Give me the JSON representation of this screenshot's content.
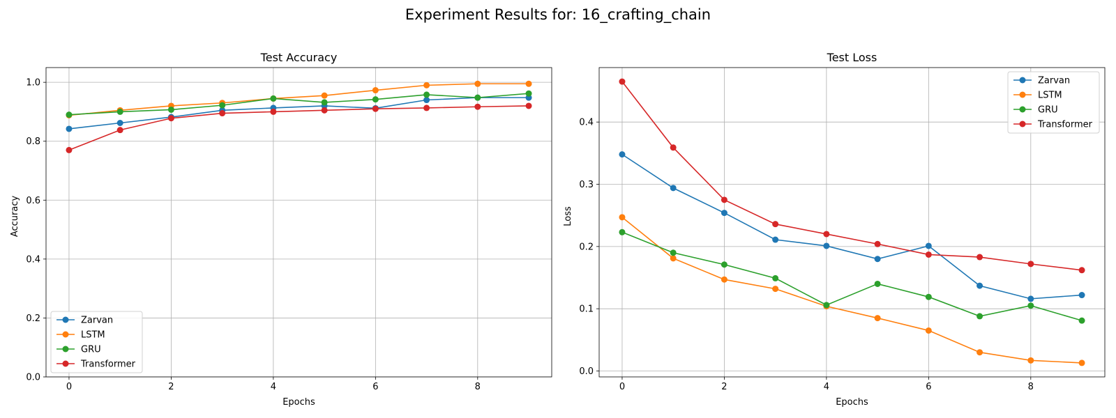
{
  "figure_title": "Experiment Results for: 16_crafting_chain",
  "series_colors": {
    "Zarvan": "#1f77b4",
    "LSTM": "#ff7f0e",
    "GRU": "#2ca02c",
    "Transformer": "#d62728"
  },
  "chart_data": [
    {
      "type": "line",
      "title": "Test Accuracy",
      "xlabel": "Epochs",
      "ylabel": "Accuracy",
      "x": [
        0,
        1,
        2,
        3,
        4,
        5,
        6,
        7,
        8,
        9
      ],
      "xlim": [
        -0.45,
        9.45
      ],
      "ylim": [
        0,
        1.05
      ],
      "xticks": [
        0,
        2,
        4,
        6,
        8
      ],
      "yticks": [
        0.0,
        0.2,
        0.4,
        0.6,
        0.8,
        1.0
      ],
      "ytick_labels": [
        "0.0",
        "0.2",
        "0.4",
        "0.6",
        "0.8",
        "1.0"
      ],
      "grid": true,
      "legend_position": "lower-left",
      "series": [
        {
          "name": "Zarvan",
          "values": [
            0.842,
            0.862,
            0.882,
            0.905,
            0.913,
            0.92,
            0.912,
            0.94,
            0.948,
            0.948
          ]
        },
        {
          "name": "LSTM",
          "values": [
            0.888,
            0.905,
            0.92,
            0.93,
            0.945,
            0.955,
            0.973,
            0.99,
            0.995,
            0.995
          ]
        },
        {
          "name": "GRU",
          "values": [
            0.89,
            0.9,
            0.907,
            0.922,
            0.945,
            0.932,
            0.942,
            0.958,
            0.948,
            0.962
          ]
        },
        {
          "name": "Transformer",
          "values": [
            0.77,
            0.838,
            0.878,
            0.895,
            0.9,
            0.905,
            0.91,
            0.913,
            0.917,
            0.92
          ]
        }
      ]
    },
    {
      "type": "line",
      "title": "Test Loss",
      "xlabel": "Epochs",
      "ylabel": "Loss",
      "x": [
        0,
        1,
        2,
        3,
        4,
        5,
        6,
        7,
        8,
        9
      ],
      "xlim": [
        -0.45,
        9.45
      ],
      "ylim": [
        -0.0095,
        0.4875
      ],
      "xticks": [
        0,
        2,
        4,
        6,
        8
      ],
      "yticks": [
        0.0,
        0.1,
        0.2,
        0.3,
        0.4
      ],
      "ytick_labels": [
        "0.0",
        "0.1",
        "0.2",
        "0.3",
        "0.4"
      ],
      "grid": true,
      "legend_position": "upper-right",
      "series": [
        {
          "name": "Zarvan",
          "values": [
            0.348,
            0.294,
            0.254,
            0.211,
            0.201,
            0.18,
            0.201,
            0.137,
            0.116,
            0.122
          ]
        },
        {
          "name": "LSTM",
          "values": [
            0.247,
            0.181,
            0.147,
            0.132,
            0.104,
            0.085,
            0.065,
            0.03,
            0.017,
            0.013
          ]
        },
        {
          "name": "GRU",
          "values": [
            0.223,
            0.19,
            0.171,
            0.149,
            0.106,
            0.14,
            0.119,
            0.088,
            0.105,
            0.081
          ]
        },
        {
          "name": "Transformer",
          "values": [
            0.465,
            0.359,
            0.275,
            0.236,
            0.22,
            0.204,
            0.187,
            0.183,
            0.172,
            0.162
          ]
        }
      ]
    }
  ]
}
